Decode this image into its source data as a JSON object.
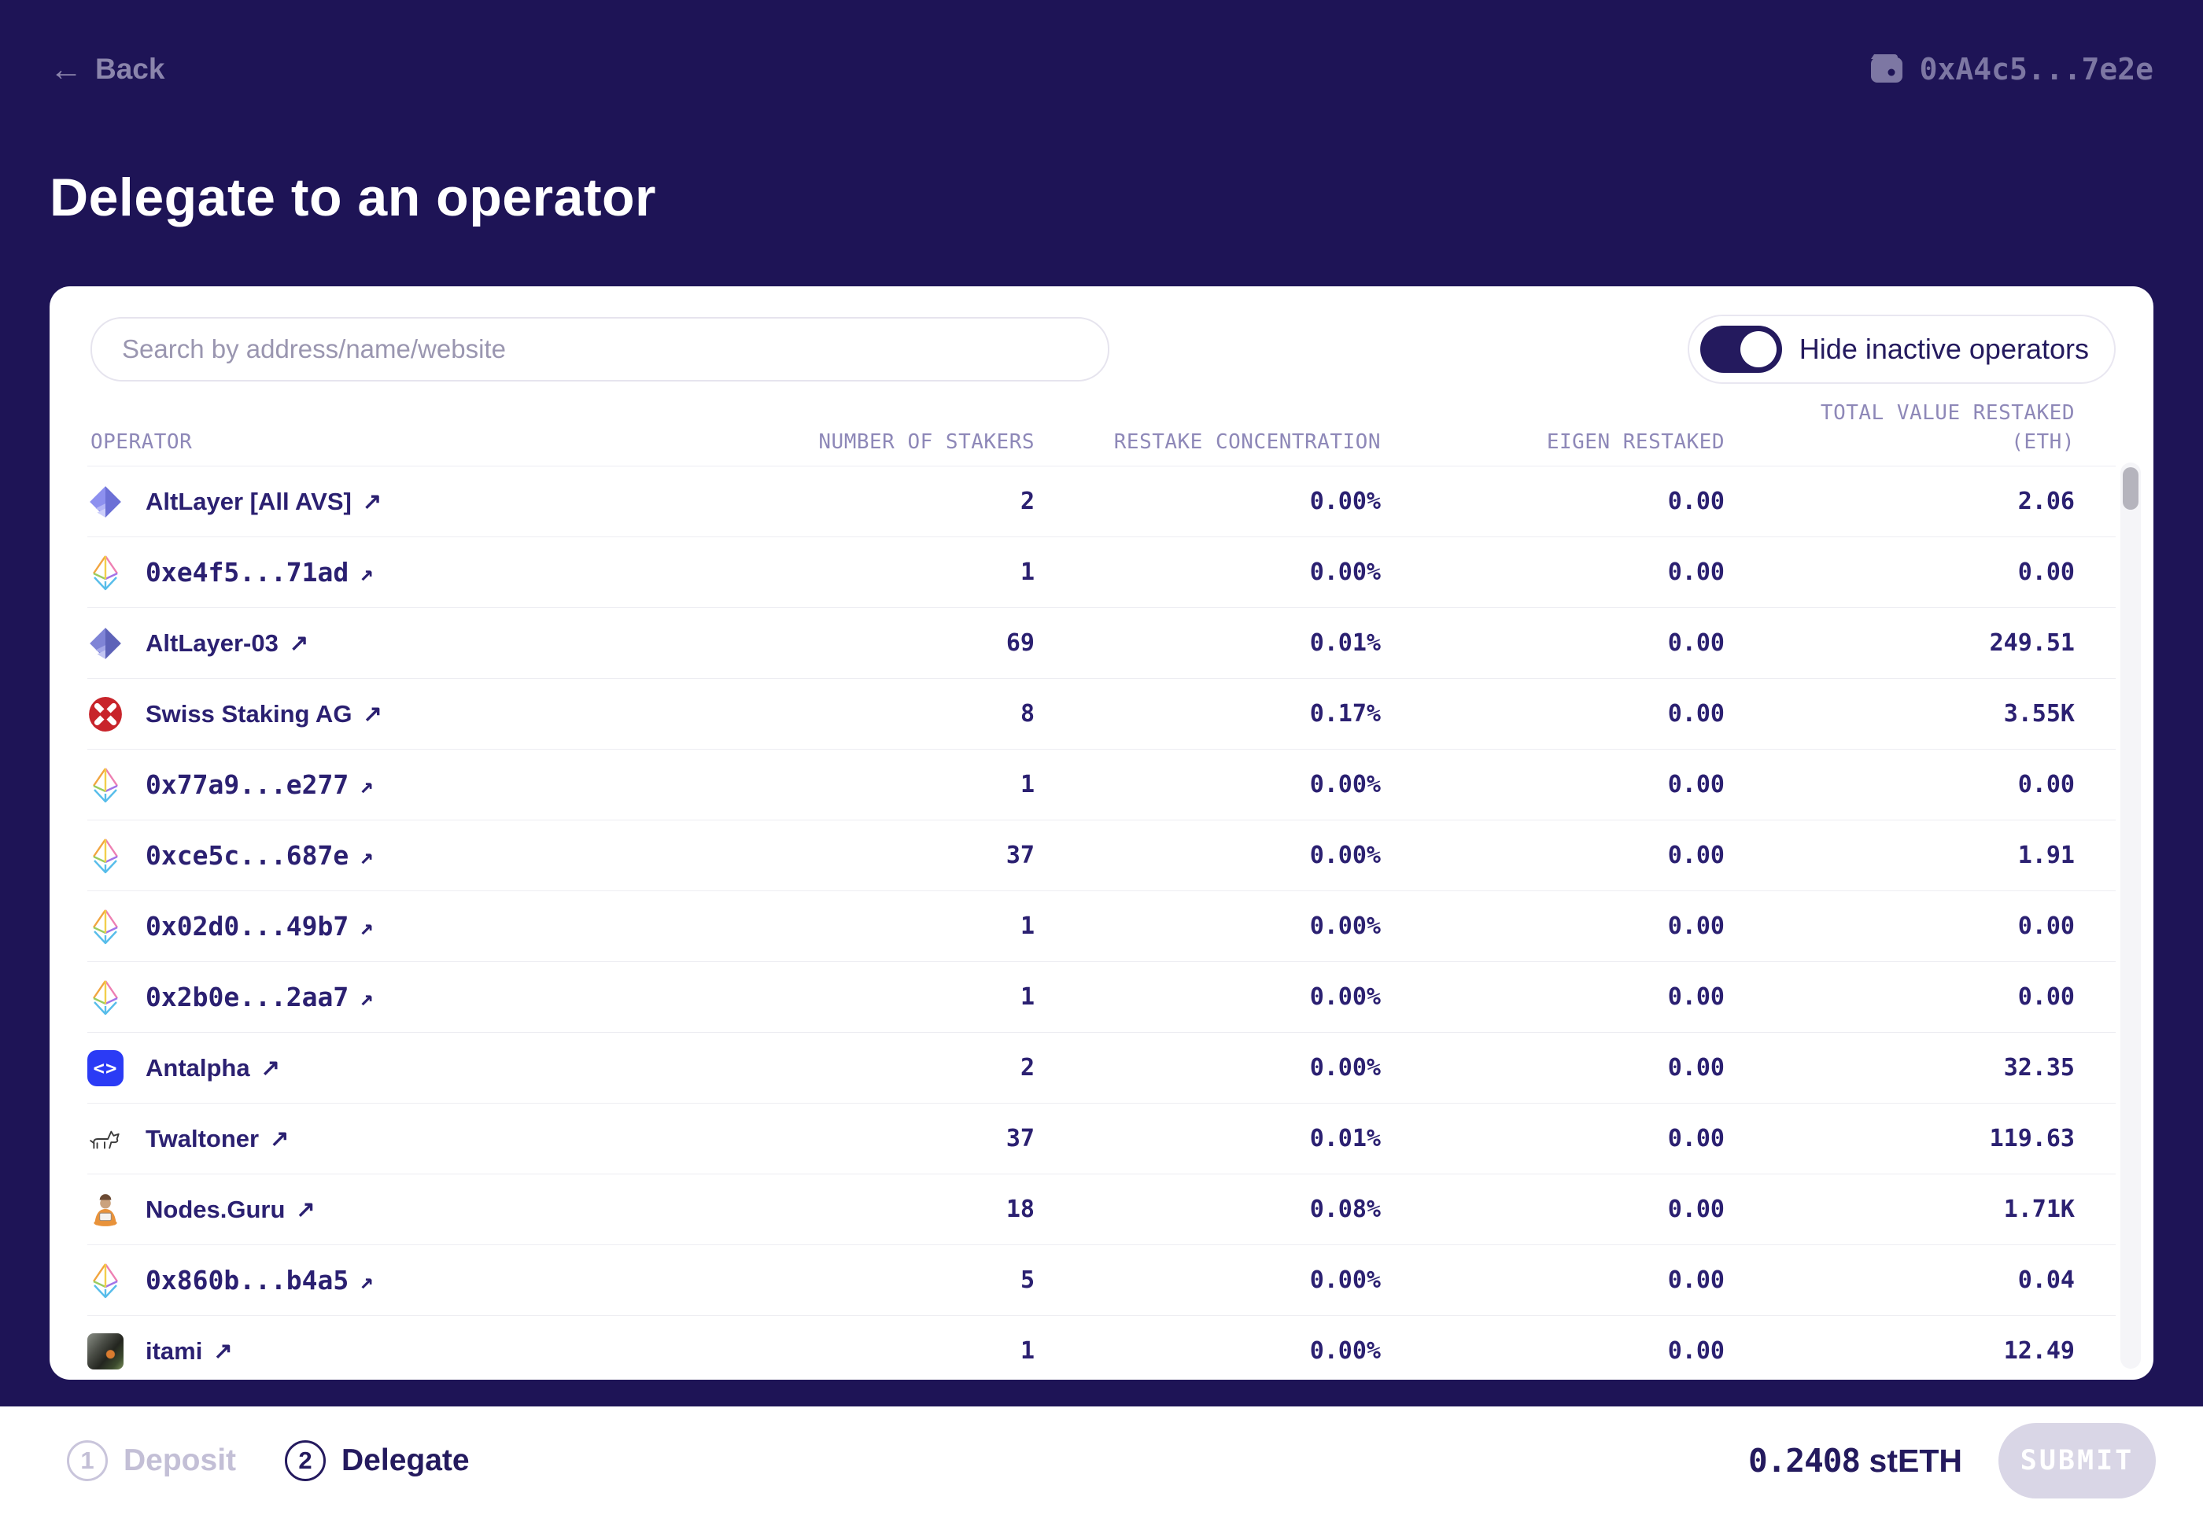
{
  "topbar": {
    "back_label": "Back",
    "wallet_address": "0xA4c5...7e2e"
  },
  "title": "Delegate to an operator",
  "card": {
    "search_placeholder": "Search by address/name/website",
    "toggle_label": "Hide inactive operators",
    "toggle_on": true
  },
  "table": {
    "columns": [
      {
        "label": "OPERATOR"
      },
      {
        "label": "NUMBER OF STAKERS"
      },
      {
        "label": "RESTAKE CONCENTRATION"
      },
      {
        "label": "EIGEN RESTAKED"
      },
      {
        "label": "TOTAL VALUE RESTAKED",
        "sublabel": "(ETH)"
      }
    ],
    "rows": [
      {
        "name": "AltLayer [All AVS]",
        "icon": "altlayer",
        "stakers": "2",
        "concentration": "0.00%",
        "eigen": "0.00",
        "total": "2.06"
      },
      {
        "name": "0xe4f5...71ad",
        "icon": "eth",
        "stakers": "1",
        "concentration": "0.00%",
        "eigen": "0.00",
        "total": "0.00"
      },
      {
        "name": "AltLayer-03",
        "icon": "altlayer-alt",
        "stakers": "69",
        "concentration": "0.01%",
        "eigen": "0.00",
        "total": "249.51"
      },
      {
        "name": "Swiss Staking AG",
        "icon": "swiss-staking",
        "stakers": "8",
        "concentration": "0.17%",
        "eigen": "0.00",
        "total": "3.55K"
      },
      {
        "name": "0x77a9...e277",
        "icon": "eth",
        "stakers": "1",
        "concentration": "0.00%",
        "eigen": "0.00",
        "total": "0.00"
      },
      {
        "name": "0xce5c...687e",
        "icon": "eth",
        "stakers": "37",
        "concentration": "0.00%",
        "eigen": "0.00",
        "total": "1.91"
      },
      {
        "name": "0x02d0...49b7",
        "icon": "eth",
        "stakers": "1",
        "concentration": "0.00%",
        "eigen": "0.00",
        "total": "0.00"
      },
      {
        "name": "0x2b0e...2aa7",
        "icon": "eth",
        "stakers": "1",
        "concentration": "0.00%",
        "eigen": "0.00",
        "total": "0.00"
      },
      {
        "name": "Antalpha",
        "icon": "antalpha",
        "stakers": "2",
        "concentration": "0.00%",
        "eigen": "0.00",
        "total": "32.35"
      },
      {
        "name": "Twaltoner",
        "icon": "twaltoner",
        "stakers": "37",
        "concentration": "0.01%",
        "eigen": "0.00",
        "total": "119.63"
      },
      {
        "name": "Nodes.Guru",
        "icon": "nodes-guru",
        "stakers": "18",
        "concentration": "0.08%",
        "eigen": "0.00",
        "total": "1.71K"
      },
      {
        "name": "0x860b...b4a5",
        "icon": "eth",
        "stakers": "5",
        "concentration": "0.00%",
        "eigen": "0.00",
        "total": "0.04"
      },
      {
        "name": "itami",
        "icon": "itami",
        "stakers": "1",
        "concentration": "0.00%",
        "eigen": "0.00",
        "total": "12.49"
      }
    ]
  },
  "icons": {
    "back_arrow": "←",
    "external_link": "↗",
    "antalpha_glyph": "<>"
  },
  "footer": {
    "steps": [
      {
        "number": "1",
        "label": "Deposit",
        "active": false
      },
      {
        "number": "2",
        "label": "Delegate",
        "active": true
      }
    ],
    "amount_value": "0.2408",
    "amount_unit": "stETH",
    "submit_label": "SUBMIT"
  },
  "colors": {
    "background": "#1e1456",
    "accent": "#241a5e",
    "row_text": "#2b2071",
    "header_text": "#8e88b8",
    "swiss_red": "#c8242b",
    "antalpha_blue": "#2b3bf5"
  }
}
